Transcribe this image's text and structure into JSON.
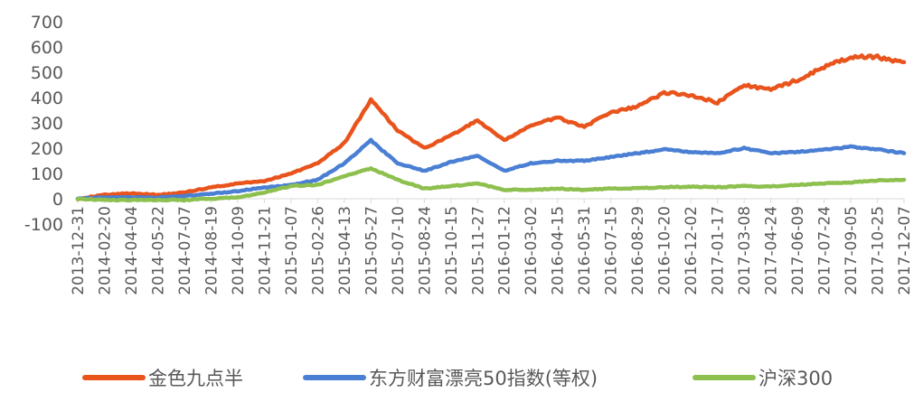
{
  "chart_data": {
    "type": "line",
    "title": "",
    "xlabel": "",
    "ylabel": "",
    "ylim": [
      -100,
      700
    ],
    "yticks": [
      -100,
      0,
      100,
      200,
      300,
      400,
      500,
      600,
      700
    ],
    "grid": false,
    "legend_position": "bottom",
    "x": [
      "2013-12-31",
      "2014-02-20",
      "2014-04-04",
      "2014-05-22",
      "2014-07-07",
      "2014-08-19",
      "2014-10-09",
      "2014-11-21",
      "2015-01-07",
      "2015-02-26",
      "2015-04-13",
      "2015-05-27",
      "2015-07-10",
      "2015-08-24",
      "2015-10-15",
      "2015-11-27",
      "2016-01-12",
      "2016-03-02",
      "2016-04-15",
      "2016-05-31",
      "2016-07-15",
      "2016-08-29",
      "2016-10-20",
      "2016-12-02",
      "2017-01-17",
      "2017-03-08",
      "2017-04-24",
      "2017-06-09",
      "2017-07-24",
      "2017-09-05",
      "2017-10-25",
      "2017-12-07"
    ],
    "series": [
      {
        "name": "金色九点半",
        "color": "#E8541C",
        "values": [
          0,
          15,
          22,
          15,
          25,
          45,
          60,
          70,
          100,
          140,
          220,
          390,
          270,
          200,
          250,
          310,
          230,
          290,
          320,
          285,
          340,
          365,
          420,
          410,
          380,
          450,
          430,
          470,
          520,
          560,
          560,
          540
        ]
      },
      {
        "name": "东方财富漂亮50指数(等权)",
        "color": "#4A7FD4",
        "values": [
          0,
          5,
          5,
          5,
          10,
          20,
          30,
          45,
          55,
          75,
          140,
          230,
          140,
          110,
          145,
          170,
          110,
          140,
          150,
          150,
          165,
          180,
          195,
          185,
          180,
          200,
          180,
          185,
          195,
          205,
          195,
          180
        ]
      },
      {
        "name": "沪深300",
        "color": "#8DC04F",
        "values": [
          0,
          -5,
          -5,
          -5,
          -5,
          0,
          5,
          25,
          50,
          55,
          90,
          120,
          75,
          40,
          50,
          60,
          35,
          35,
          40,
          35,
          40,
          42,
          45,
          48,
          45,
          50,
          48,
          55,
          60,
          65,
          72,
          75
        ]
      }
    ]
  }
}
